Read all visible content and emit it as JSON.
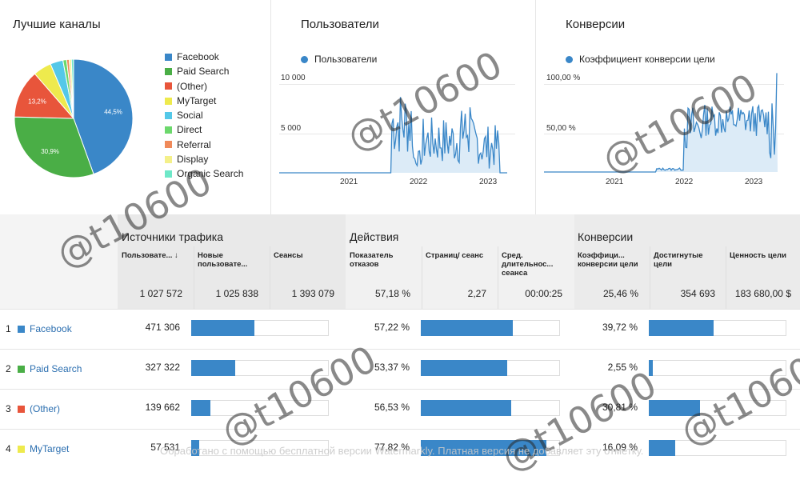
{
  "channels_card": {
    "title": "Лучшие каналы",
    "pie_labels": [
      "44,5%",
      "30,9%",
      "13,2%"
    ],
    "legend": [
      {
        "label": "Facebook",
        "color": "#3a87c8"
      },
      {
        "label": "Paid Search",
        "color": "#4aae46"
      },
      {
        "label": "(Other)",
        "color": "#e8553b"
      },
      {
        "label": "MyTarget",
        "color": "#eeea4d"
      },
      {
        "label": "Social",
        "color": "#54c8e8"
      },
      {
        "label": "Direct",
        "color": "#6cd86c"
      },
      {
        "label": "Referral",
        "color": "#f08a5a"
      },
      {
        "label": "Display",
        "color": "#f4f08a"
      },
      {
        "label": "Organic Search",
        "color": "#6ee8c8"
      }
    ]
  },
  "users_card": {
    "title": "Пользователи",
    "series_label": "Пользователи",
    "y_ticks": [
      "10 000",
      "5 000"
    ],
    "x_ticks": [
      "2021",
      "2022",
      "2023"
    ]
  },
  "conv_card": {
    "title": "Конверсии",
    "series_label": "Коэффициент конверсии цели",
    "y_ticks": [
      "100,00 %",
      "50,00 %"
    ],
    "x_ticks": [
      "2021",
      "2022",
      "2023"
    ]
  },
  "table": {
    "groups": [
      "Источники трафика",
      "Действия",
      "Конверсии"
    ],
    "columns": [
      "Пользовате... ↓",
      "Новые пользовате...",
      "Сеансы",
      "Показатель отказов",
      "Страниц/ сеанс",
      "Сред. длительнос... сеанса",
      "Коэффици... конверсии цели",
      "Достигнутые цели",
      "Ценность цели"
    ],
    "totals": [
      "1 027 572",
      "1 025 838",
      "1 393 079",
      "57,18 %",
      "2,27",
      "00:00:25",
      "25,46 %",
      "354 693",
      "183 680,00 $"
    ],
    "rows": [
      {
        "rank": "1",
        "name": "Facebook",
        "color": "#3a87c8",
        "users": "471 306",
        "bounce": "57,22 %",
        "conv": "39,72 %",
        "users_bar": 0.46,
        "pages_bar": 0.66,
        "goals_bar": 0.47
      },
      {
        "rank": "2",
        "name": "Paid Search",
        "color": "#4aae46",
        "users": "327 322",
        "bounce": "53,37 %",
        "conv": "2,55 %",
        "users_bar": 0.32,
        "pages_bar": 0.62,
        "goals_bar": 0.03
      },
      {
        "rank": "3",
        "name": "(Other)",
        "color": "#e8553b",
        "users": "139 662",
        "bounce": "56,53 %",
        "conv": "30,81 %",
        "users_bar": 0.14,
        "pages_bar": 0.65,
        "goals_bar": 0.37
      },
      {
        "rank": "4",
        "name": "MyTarget",
        "color": "#eeea4d",
        "users": "57 531",
        "bounce": "77,82 %",
        "conv": "16,09 %",
        "users_bar": 0.06,
        "pages_bar": 0.9,
        "goals_bar": 0.19
      }
    ]
  },
  "watermark": "@t10600",
  "footer_note": "Обработано с помощью бесплатной версии Watermarkly. Платная версия не добавляет эту отметку."
}
